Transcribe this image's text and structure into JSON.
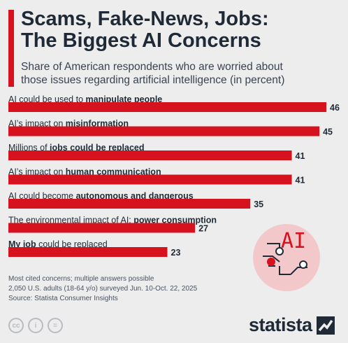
{
  "header": {
    "title_line1": "Scams, Fake-News, Jobs:",
    "title_line2": "The Biggest AI Concerns",
    "subtitle_line1": "Share of American respondents who are worried about",
    "subtitle_line2": "those issues regarding artificial intelligence (in percent)"
  },
  "chart_data": {
    "type": "bar",
    "orientation": "horizontal",
    "categories": [
      [
        {
          "t": "AI could be used to ",
          "b": false
        },
        {
          "t": "manipulate people",
          "b": true
        }
      ],
      [
        {
          "t": "AI’s impact on ",
          "b": false
        },
        {
          "t": "misinformation",
          "b": true
        }
      ],
      [
        {
          "t": "Millions of ",
          "b": false
        },
        {
          "t": "jobs could be replaced",
          "b": true
        }
      ],
      [
        {
          "t": "AI’s impact on ",
          "b": false
        },
        {
          "t": "human communication",
          "b": true
        }
      ],
      [
        {
          "t": "AI could become ",
          "b": false
        },
        {
          "t": "autonomous and dangerous",
          "b": true
        }
      ],
      [
        {
          "t": "The environmental impact of AI: ",
          "b": false
        },
        {
          "t": "power consumption",
          "b": true
        }
      ],
      [
        {
          "t": "My job",
          "b": true
        },
        {
          "t": " could be replaced",
          "b": false
        }
      ]
    ],
    "values": [
      46,
      45,
      41,
      41,
      35,
      27,
      23
    ],
    "bar_color": "#d6121f",
    "xlim": [
      0,
      46
    ],
    "grid": false,
    "legend": "none"
  },
  "badge": {
    "text": "AI",
    "color": "#d6121f",
    "bg": "#f3c8cb"
  },
  "notes": {
    "line1": "Most cited concerns; multiple answers possible",
    "line2": "2,050 U.S. adults (18-64 y/o) surveyed Jun. 10-Oct. 22, 2025",
    "line3": "Source: Statista Consumer Insights"
  },
  "footer": {
    "license_icons": [
      "cc-icon",
      "attribution-icon",
      "no-derivatives-icon"
    ],
    "license_glyphs": [
      "cc",
      "i",
      "="
    ],
    "brand": "statista"
  }
}
